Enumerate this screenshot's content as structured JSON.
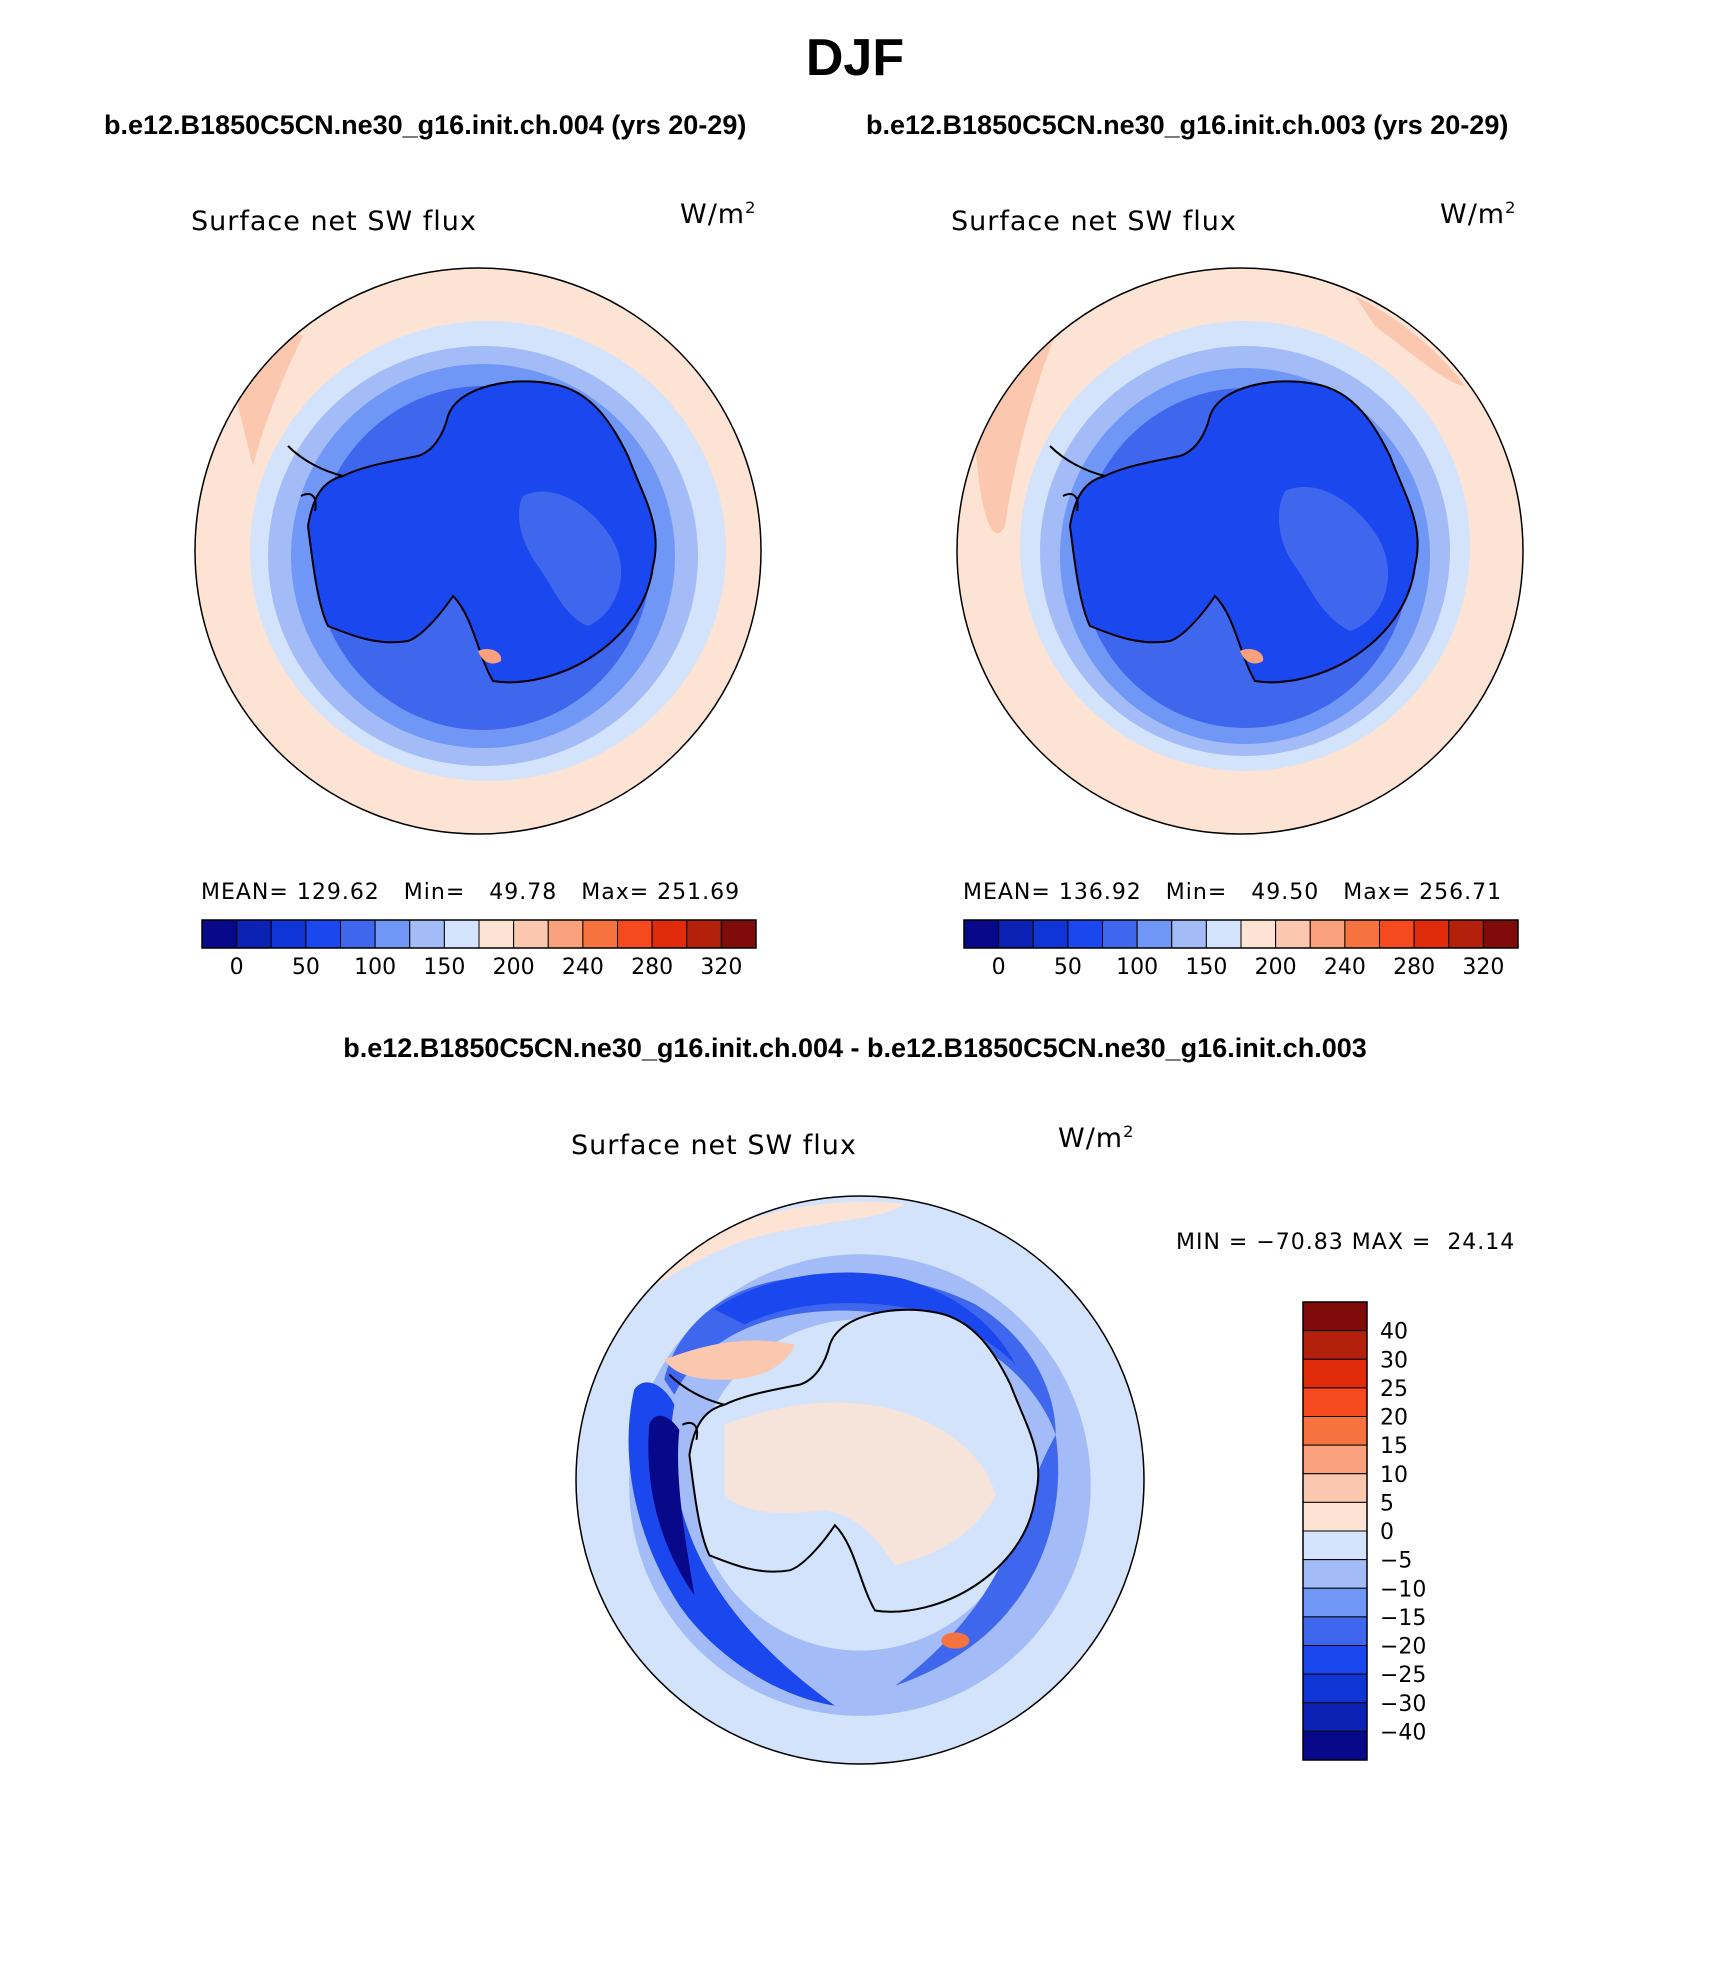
{
  "title": "DJF",
  "case_top_left": "b.e12.B1850C5CN.ne30_g16.init.ch.004 (yrs 20-29)",
  "case_top_right": "b.e12.B1850C5CN.ne30_g16.init.ch.003 (yrs 20-29)",
  "diff_title": "b.e12.B1850C5CN.ne30_g16.init.ch.004 - b.e12.B1850C5CN.ne30_g16.init.ch.003",
  "variable": "Surface net SW flux",
  "units_base": "W/m",
  "units_exp": "2",
  "panel_left": {
    "mean_label": "MEAN=",
    "mean": "129.62",
    "min_label": "Min=",
    "min": "49.78",
    "max_label": "Max=",
    "max": "251.69"
  },
  "panel_right": {
    "mean_label": "MEAN=",
    "mean": "136.92",
    "min_label": "Min=",
    "min": "49.50",
    "max_label": "Max=",
    "max": "256.71"
  },
  "diff_stats": {
    "min_label": "MIN =",
    "min": "−70.83",
    "max_label": "MAX =",
    "max": "24.14"
  },
  "colors": {
    "ocean": "#fde3d3",
    "abs_scale": [
      "#08088a",
      "#0b22b5",
      "#0f35d6",
      "#1b47ef",
      "#3f67ee",
      "#7097f5",
      "#a3bcf7",
      "#d2e3fb",
      "#fde3d3",
      "#fbc8af",
      "#f9a07c",
      "#f6723f",
      "#f44a1d",
      "#e12c0b",
      "#b3200b",
      "#800b0b"
    ],
    "diff_scale": [
      "#800b0b",
      "#b3200b",
      "#e12c0b",
      "#f44a1d",
      "#f6723f",
      "#f9a07c",
      "#fbc8af",
      "#fde3d3",
      "#d2e3fb",
      "#a3bcf7",
      "#7097f5",
      "#3f67ee",
      "#1b47ef",
      "#0f35d6",
      "#0b22b5",
      "#08088a"
    ]
  },
  "abs_ticks": [
    "0",
    "50",
    "100",
    "150",
    "200",
    "240",
    "280",
    "320"
  ],
  "diff_ticks": [
    "40",
    "30",
    "25",
    "20",
    "15",
    "10",
    "5",
    "0",
    "−5",
    "−10",
    "−15",
    "−20",
    "−25",
    "−30",
    "−40"
  ]
}
